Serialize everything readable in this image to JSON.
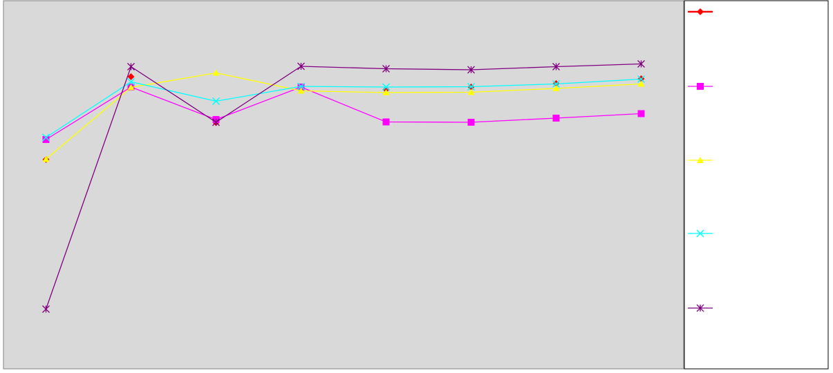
{
  "chart_data": {
    "type": "line",
    "title": "",
    "xlabel": "",
    "ylabel": "",
    "x": [
      1,
      2,
      3,
      4,
      5,
      6,
      7,
      8
    ],
    "xlim": [
      0.5,
      8.5
    ],
    "ylim": [
      0,
      106.6
    ],
    "grid": false,
    "legend": "right",
    "plot_background": "#d9d9d9",
    "series": [
      {
        "name": "",
        "color": "#ff0000",
        "marker": "diamond",
        "show_line": false,
        "values": [
          60.6,
          84.6,
          71.3,
          80.8,
          80.9,
          81.6,
          82.6,
          84.0
        ]
      },
      {
        "name": "",
        "color": "#ff00ff",
        "marker": "square",
        "show_line": true,
        "values": [
          66.4,
          81.6,
          72.2,
          81.6,
          71.5,
          71.4,
          72.6,
          73.9
        ]
      },
      {
        "name": "",
        "color": "#ffff00",
        "marker": "triangle",
        "show_line": true,
        "values": [
          60.7,
          81.5,
          85.7,
          80.5,
          80.0,
          80.1,
          81.2,
          82.5
        ]
      },
      {
        "name": "",
        "color": "#00ffff",
        "marker": "x",
        "show_line": true,
        "values": [
          67.0,
          83.1,
          77.5,
          81.8,
          81.6,
          81.7,
          82.5,
          83.9
        ]
      },
      {
        "name": "",
        "color": "#800080",
        "marker": "asterisk",
        "show_line": true,
        "values": [
          17.3,
          87.5,
          71.4,
          87.6,
          86.9,
          86.6,
          87.5,
          88.3
        ]
      }
    ]
  }
}
